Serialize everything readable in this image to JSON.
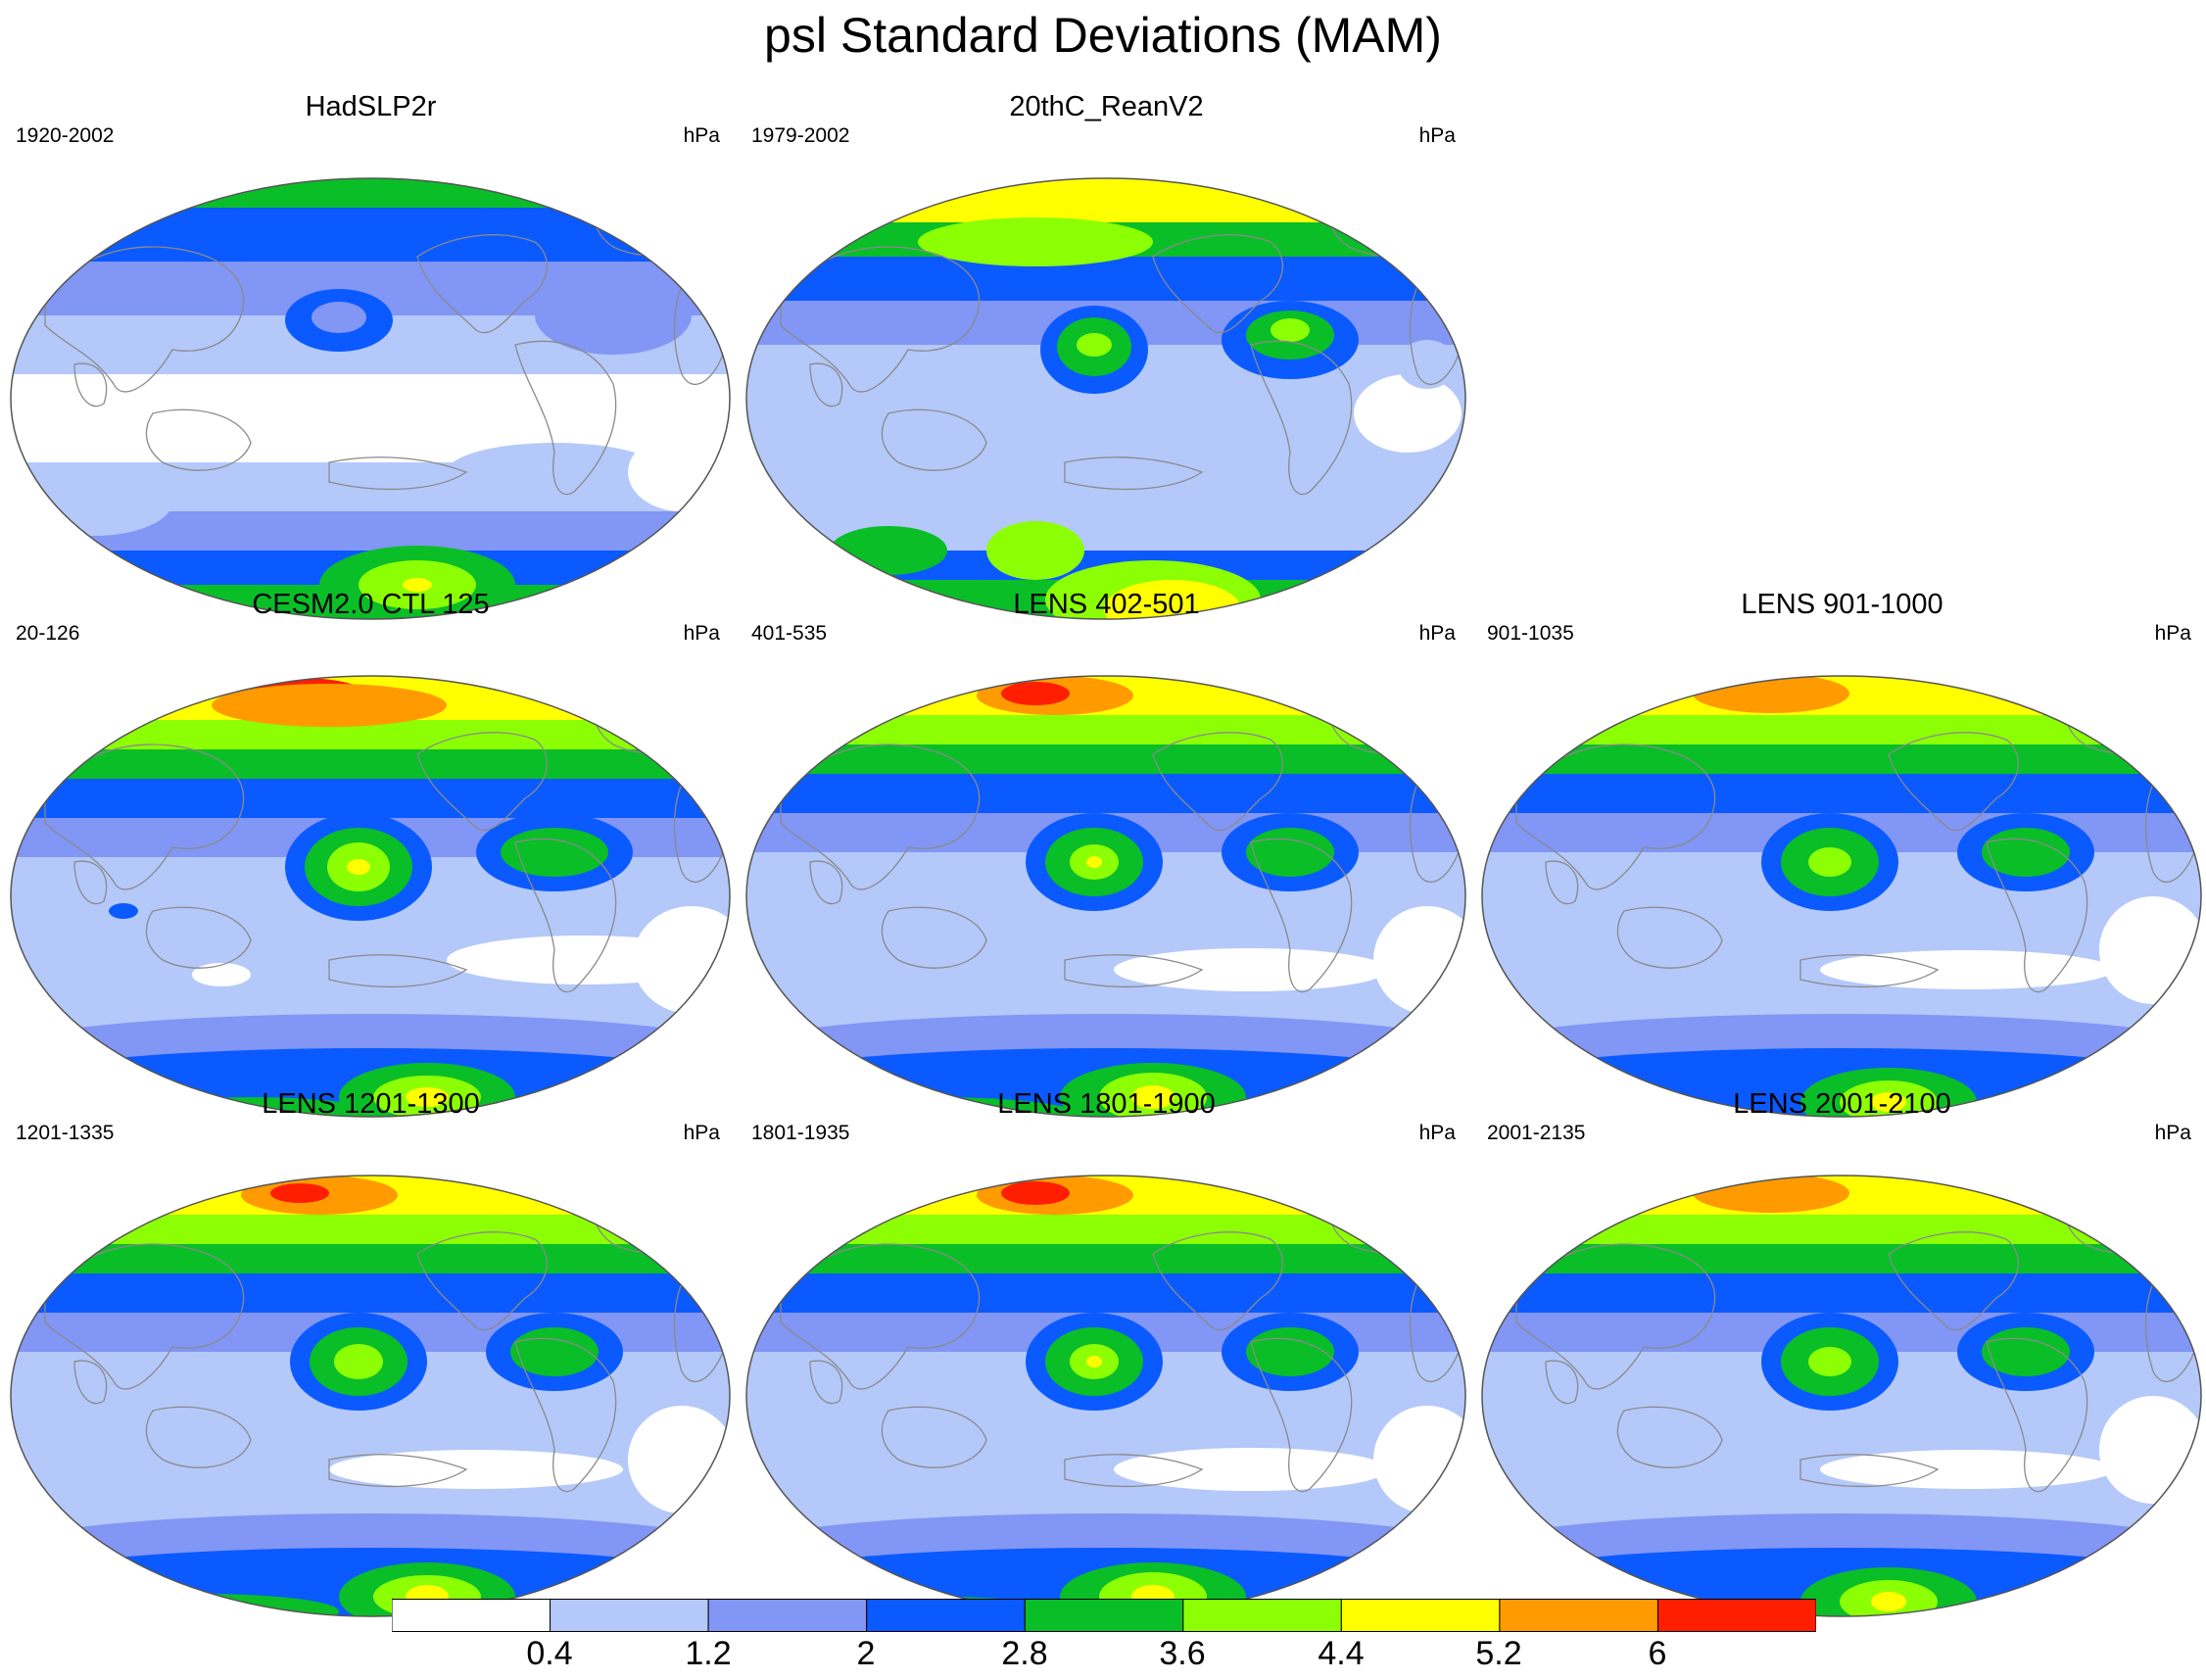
{
  "title": "psl Standard Deviations (MAM)",
  "panels": [
    {
      "title": "HadSLP2r",
      "years": "1920-2002",
      "units": "hPa"
    },
    {
      "title": "20thC_ReanV2",
      "years": "1979-2002",
      "units": "hPa"
    },
    {
      "title": "CESM2.0 CTL 125",
      "years": "20-126",
      "units": "hPa"
    },
    {
      "title": "LENS 402-501",
      "years": "401-535",
      "units": "hPa"
    },
    {
      "title": "LENS 901-1000",
      "years": "901-1035",
      "units": "hPa"
    },
    {
      "title": "LENS 1201-1300",
      "years": "1201-1335",
      "units": "hPa"
    },
    {
      "title": "LENS 1801-1900",
      "years": "1801-1935",
      "units": "hPa"
    },
    {
      "title": "LENS 2001-2100",
      "years": "2001-2135",
      "units": "hPa"
    }
  ],
  "colorbar": {
    "labels": [
      "0.4",
      "1.2",
      "2",
      "2.8",
      "3.6",
      "4.4",
      "5.2",
      "6"
    ],
    "colors": [
      "#ffffff",
      "#b4c8fa",
      "#8296f5",
      "#0a5aff",
      "#0abe28",
      "#8cff05",
      "#ffff00",
      "#ff9b00",
      "#ff1e00"
    ]
  },
  "map_style": {
    "coast_color": "#8a8a8a",
    "border_color": "#555555"
  }
}
